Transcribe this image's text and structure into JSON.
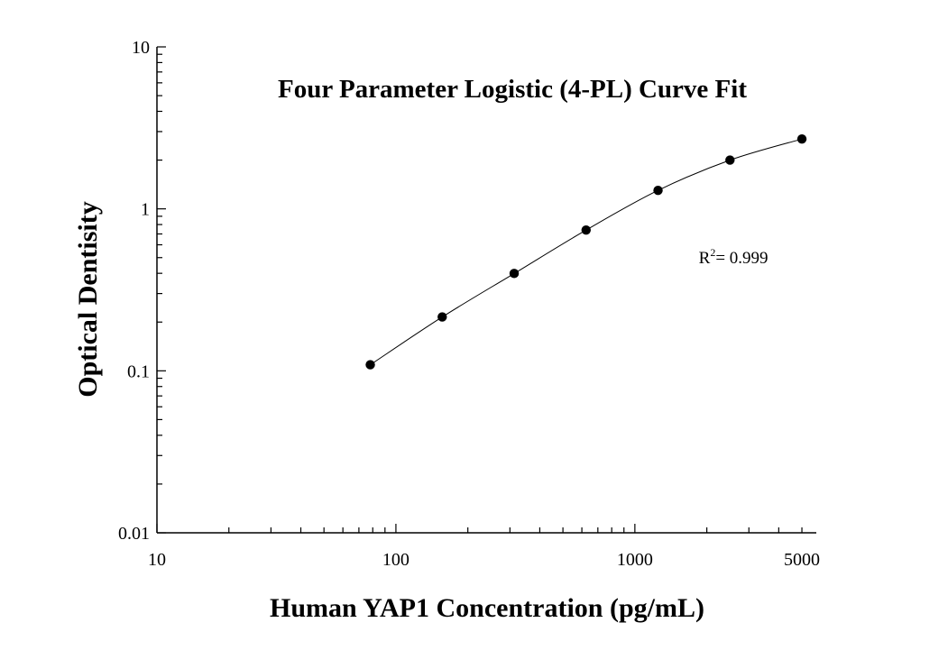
{
  "chart_data": {
    "type": "scatter",
    "title": "Four Parameter Logistic (4-PL) Curve Fit",
    "xlabel": "Human YAP1 Concentration (pg/mL)",
    "ylabel": "Optical Dentisity",
    "x_scale": "log",
    "y_scale": "log",
    "xlim": [
      10,
      5500
    ],
    "ylim": [
      0.01,
      10
    ],
    "x_ticks": [
      {
        "value": 10,
        "label": "10"
      },
      {
        "value": 100,
        "label": "100"
      },
      {
        "value": 1000,
        "label": "1000"
      },
      {
        "value": 5000,
        "label": "5000"
      }
    ],
    "y_ticks": [
      {
        "value": 0.01,
        "label": "0.01"
      },
      {
        "value": 0.1,
        "label": "0.1"
      },
      {
        "value": 1,
        "label": "1"
      },
      {
        "value": 10,
        "label": "10"
      }
    ],
    "grid": false,
    "series": [
      {
        "x": [
          78.125,
          156.25,
          312.5,
          625,
          1250,
          2500,
          5000
        ],
        "y": [
          0.109,
          0.215,
          0.399,
          0.74,
          1.3,
          2.0,
          2.7
        ]
      }
    ],
    "fit_curve": {
      "model": "4PL",
      "x_range": [
        78.125,
        5000
      ]
    },
    "annotation": {
      "r_symbol": "R",
      "superscript": "2",
      "text": "= 0.999",
      "x": 1850,
      "y": 0.5
    },
    "colors": {
      "points": "#000000",
      "curve": "#000000",
      "axes": "#000000"
    }
  }
}
